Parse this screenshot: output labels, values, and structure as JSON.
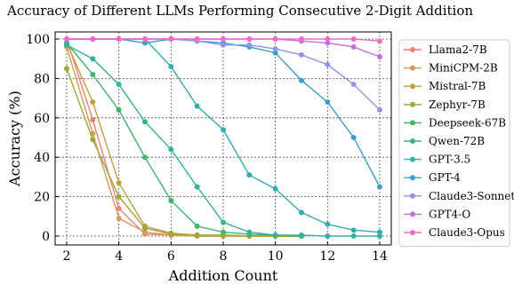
{
  "chart_data": {
    "type": "line",
    "title": "Accuracy of Different LLMs Performing Consecutive 2-Digit Addition",
    "xlabel": "Addition Count",
    "ylabel": "Accuracy (%)",
    "xlim": [
      2,
      14
    ],
    "ylim": [
      0,
      100
    ],
    "xticks": [
      2,
      4,
      6,
      8,
      10,
      12,
      14
    ],
    "yticks": [
      0,
      20,
      40,
      60,
      80,
      100
    ],
    "grid": true,
    "legend_position": "right",
    "series": [
      {
        "name": "Llama2-7B",
        "color": "#f07f80",
        "x": [
          2,
          3,
          4,
          5,
          6,
          7,
          8,
          9,
          10,
          11
        ],
        "values": [
          100,
          59,
          14,
          1,
          0.5,
          0,
          0,
          0,
          0,
          0
        ]
      },
      {
        "name": "MiniCPM-2B",
        "color": "#d99a55",
        "x": [
          2,
          3,
          4,
          5,
          6,
          7,
          8,
          9,
          10,
          11
        ],
        "values": [
          96,
          52,
          9,
          2,
          0.5,
          0,
          0,
          0,
          0,
          0
        ]
      },
      {
        "name": "Mistral-7B",
        "color": "#c0a03c",
        "x": [
          2,
          3,
          4,
          5,
          6,
          7,
          8,
          9,
          10,
          11
        ],
        "values": [
          98,
          68,
          27,
          5,
          1.5,
          0.5,
          0.5,
          0,
          0,
          0
        ]
      },
      {
        "name": "Zephyr-7B",
        "color": "#9aaa36",
        "x": [
          2,
          3,
          4,
          5,
          6,
          7,
          8,
          9,
          10,
          11
        ],
        "values": [
          85,
          49,
          20,
          4,
          1,
          0.5,
          0.5,
          0,
          0,
          0
        ]
      },
      {
        "name": "Deepseek-67B",
        "color": "#3fb46c",
        "x": [
          2,
          3,
          4,
          5,
          6,
          7,
          8,
          9,
          10,
          11
        ],
        "values": [
          98,
          82,
          64,
          40,
          18,
          5,
          2,
          1,
          0.5,
          0
        ]
      },
      {
        "name": "Qwen-72B",
        "color": "#34b29a",
        "x": [
          2,
          3,
          4,
          5,
          6,
          7,
          8,
          9,
          10,
          11,
          12,
          13,
          14
        ],
        "values": [
          97,
          90,
          77,
          58,
          44,
          25,
          7,
          2,
          0.5,
          0.5,
          0,
          0,
          0
        ]
      },
      {
        "name": "GPT-3.5",
        "color": "#34aeaa",
        "x": [
          2,
          3,
          4,
          5,
          6,
          7,
          8,
          9,
          10,
          11,
          12,
          13,
          14
        ],
        "values": [
          100,
          100,
          100,
          100,
          86,
          66,
          54,
          31,
          24,
          12,
          6,
          3,
          2
        ]
      },
      {
        "name": "GPT-4",
        "color": "#3ba0c8",
        "x": [
          2,
          3,
          4,
          5,
          6,
          7,
          8,
          9,
          10,
          11,
          12,
          13,
          14
        ],
        "values": [
          100,
          100,
          100,
          98,
          100,
          99,
          98,
          96,
          93,
          79,
          68,
          50,
          25
        ]
      },
      {
        "name": "Claude3-Sonnet",
        "color": "#8f96e6",
        "x": [
          2,
          3,
          4,
          5,
          6,
          7,
          8,
          9,
          10,
          11,
          12,
          13,
          14
        ],
        "values": [
          100,
          100,
          100,
          100,
          100,
          99,
          97,
          97,
          95,
          92,
          87,
          77,
          64
        ]
      },
      {
        "name": "GPT4-O",
        "color": "#c86ee3",
        "x": [
          2,
          3,
          4,
          5,
          6,
          7,
          8,
          9,
          10,
          11,
          12,
          13,
          14
        ],
        "values": [
          100,
          100,
          100,
          100,
          100,
          100,
          100,
          100,
          100,
          99,
          98,
          96,
          91
        ]
      },
      {
        "name": "Claude3-Opus",
        "color": "#f06cc7",
        "x": [
          2,
          3,
          4,
          5,
          6,
          7,
          8,
          9,
          10,
          11,
          12,
          13,
          14
        ],
        "values": [
          100,
          100,
          100,
          100,
          100,
          100,
          100,
          100,
          100,
          100,
          100,
          100,
          99
        ]
      }
    ]
  }
}
